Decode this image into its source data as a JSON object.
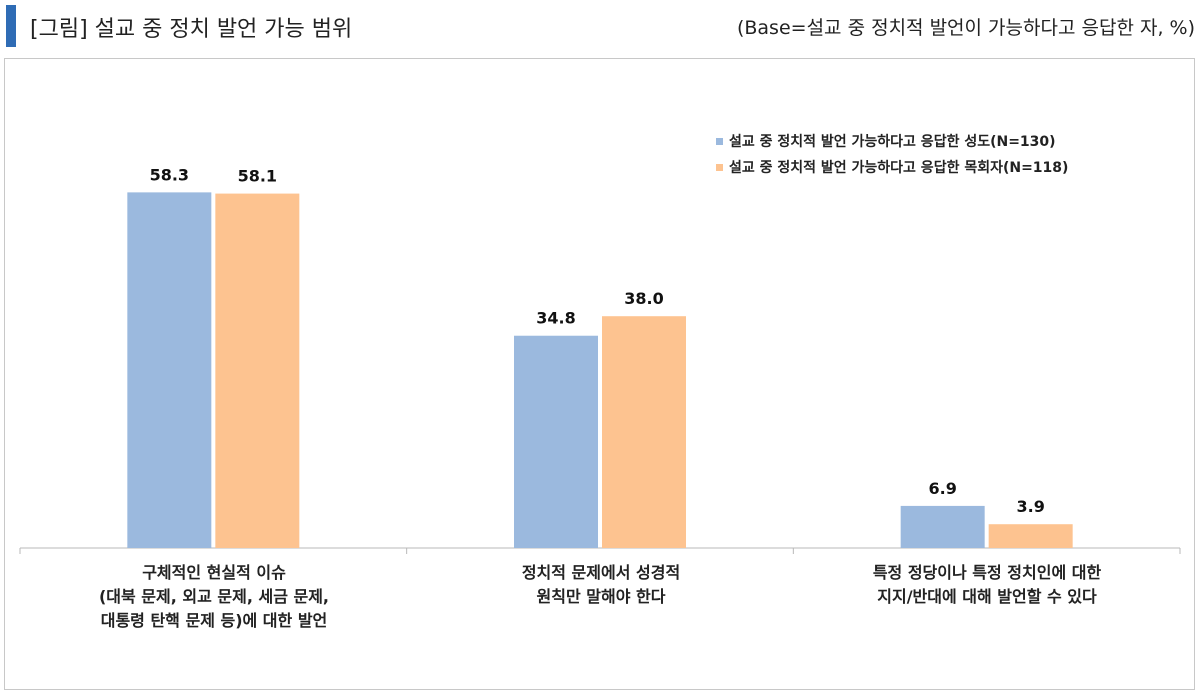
{
  "header": {
    "title": "[그림] 설교 중 정치 발언 가능 범위",
    "base_note": "(Base=설교 중 정치적 발언이 가능하다고 응답한 자, %)"
  },
  "colors": {
    "accent_bar": "#2f6cb5",
    "series1": "#9bb9de",
    "series2": "#fdc390"
  },
  "chart_data": {
    "type": "bar",
    "categories": [
      "구체적인 현실적 이슈\n(대북 문제, 외교 문제, 세금 문제,\n대통령 탄핵 문제 등)에 대한 발언",
      "정치적 문제에서 성경적\n원칙만 말해야 한다",
      "특정 정당이나 특정 정치인에 대한\n지지/반대에 대해 발언할 수 있다"
    ],
    "series": [
      {
        "name": "설교 중 정치적 발언 가능하다고 응답한 성도(N=130)",
        "values": [
          58.3,
          34.8,
          6.9
        ],
        "labels": [
          "58.3",
          "34.8",
          "6.9"
        ],
        "color": "#9bb9de"
      },
      {
        "name": "설교 중 정치적 발언 가능하다고 응답한 목회자(N=118)",
        "values": [
          58.1,
          38.0,
          3.9
        ],
        "labels": [
          "58.1",
          "38.0",
          "3.9"
        ],
        "color": "#fdc390"
      }
    ],
    "ylim": [
      0,
      70
    ],
    "grid": false,
    "legend_position": "top-right"
  }
}
